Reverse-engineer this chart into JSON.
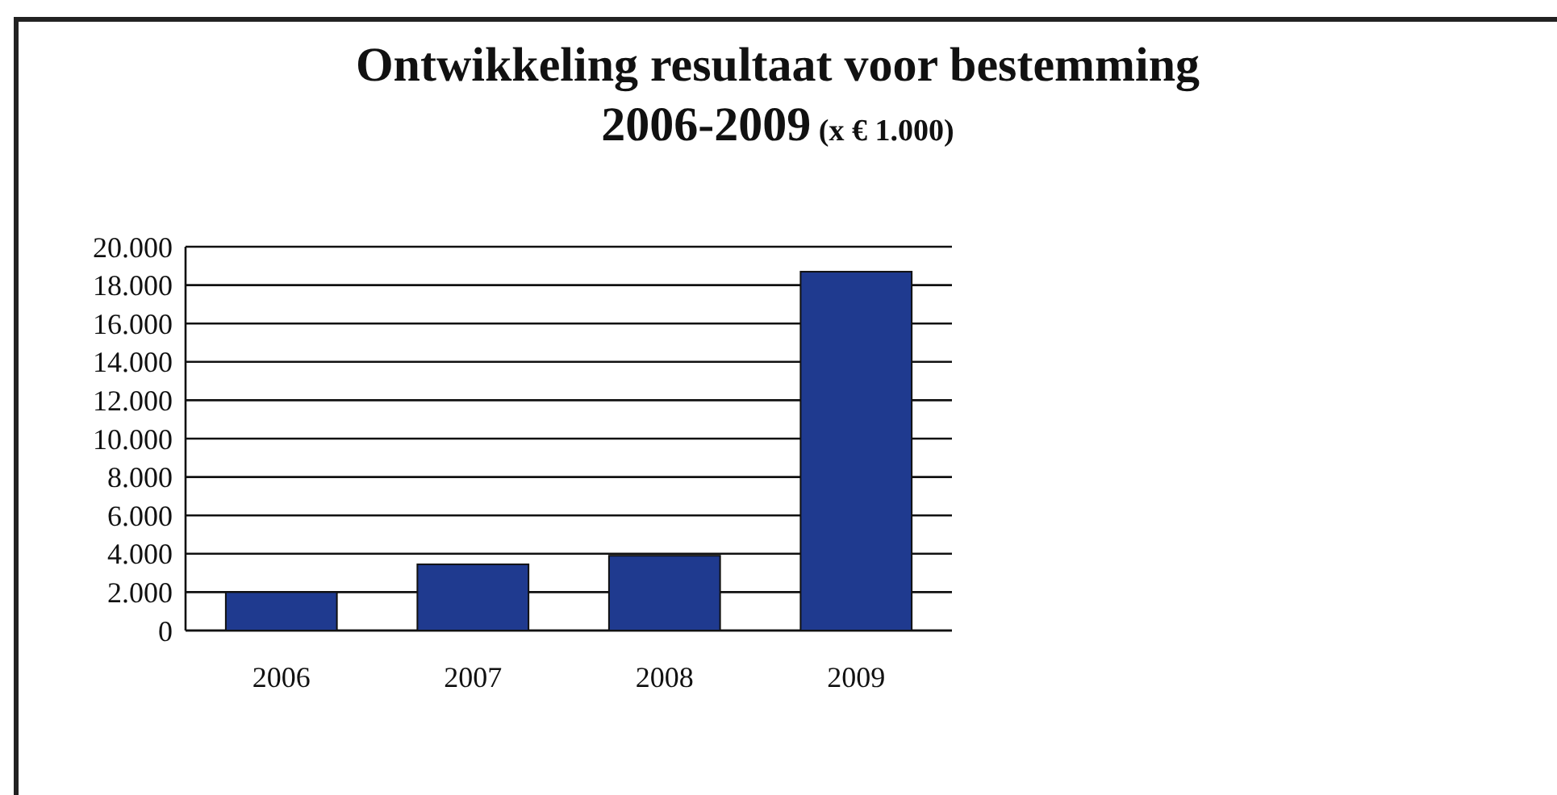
{
  "chart_data": {
    "type": "bar",
    "title": "Ontwikkeling resultaat voor bestemming\n2006-2009",
    "subtitle": "(x € 1.000)",
    "categories": [
      "2006",
      "2007",
      "2008",
      "2009"
    ],
    "values": [
      2000,
      3450,
      3900,
      18700
    ],
    "color": "#1f3a8f",
    "ylim": [
      0,
      20000
    ],
    "yticks": [
      {
        "value": 0,
        "label": "0"
      },
      {
        "value": 2000,
        "label": "2.000"
      },
      {
        "value": 4000,
        "label": "4.000"
      },
      {
        "value": 6000,
        "label": "6.000"
      },
      {
        "value": 8000,
        "label": "8.000"
      },
      {
        "value": 10000,
        "label": "10.000"
      },
      {
        "value": 12000,
        "label": "12.000"
      },
      {
        "value": 14000,
        "label": "14.000"
      },
      {
        "value": 16000,
        "label": "16.000"
      },
      {
        "value": 18000,
        "label": "18.000"
      },
      {
        "value": 20000,
        "label": "20.000"
      }
    ],
    "grid": "y"
  }
}
